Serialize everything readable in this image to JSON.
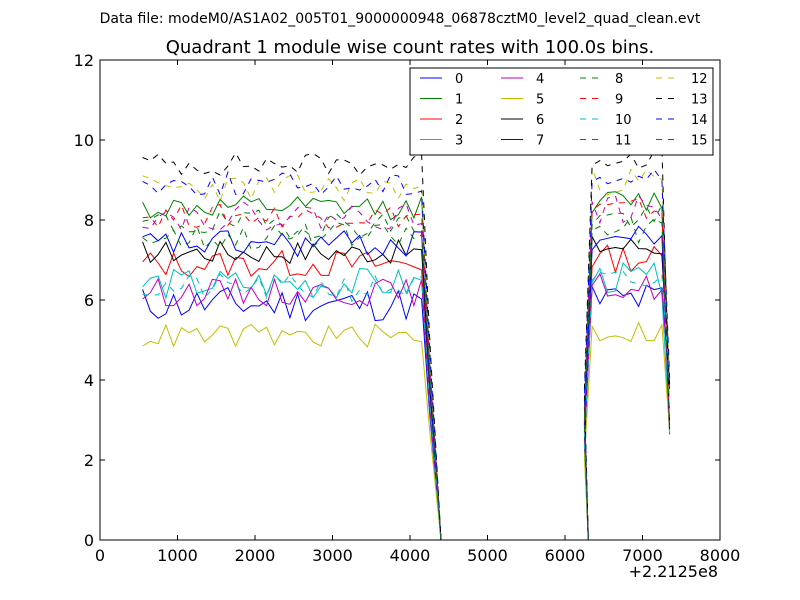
{
  "chart_data": {
    "type": "line",
    "suptitle": "Data file: modeM0/AS1A02_005T01_9000000948_06878cztM0_level2_quad_clean.evt",
    "title": "Quadrant 1 module wise count rates with 100.0s bins.",
    "xlabel": "",
    "ylabel": "",
    "x_offset_label": "+2.2125e8",
    "xlim": [
      0,
      8000
    ],
    "ylim": [
      0,
      12
    ],
    "xticks": [
      "0",
      "1000",
      "2000",
      "3000",
      "4000",
      "5000",
      "6000",
      "7000",
      "8000"
    ],
    "yticks": [
      "0",
      "2",
      "4",
      "6",
      "8",
      "10",
      "12"
    ],
    "legend_position": "top-right",
    "bin_width_s": 100,
    "segments": [
      {
        "x_start": 550,
        "x_end": 4150
      },
      {
        "x_start": 6350,
        "x_end": 7350
      }
    ],
    "zero_span": [
      4400,
      6300
    ],
    "series": [
      {
        "name": "0",
        "color": "#0000ff",
        "dash": "solid",
        "level": 5.9,
        "noise": 0.45,
        "seed": 11
      },
      {
        "name": "1",
        "color": "#008000",
        "dash": "solid",
        "level": 8.3,
        "noise": 0.3,
        "seed": 12
      },
      {
        "name": "2",
        "color": "#ff0000",
        "dash": "solid",
        "level": 6.9,
        "noise": 0.35,
        "seed": 13
      },
      {
        "name": "3",
        "color": "#00bfbf",
        "dash": "solid",
        "level": 6.4,
        "noise": 0.4,
        "seed": 14
      },
      {
        "name": "4",
        "color": "#bf00bf",
        "dash": "solid",
        "level": 6.2,
        "noise": 0.35,
        "seed": 15
      },
      {
        "name": "5",
        "color": "#bfbf00",
        "dash": "solid",
        "level": 5.1,
        "noise": 0.3,
        "seed": 16
      },
      {
        "name": "6",
        "color": "#000000",
        "dash": "solid",
        "level": 7.2,
        "noise": 0.3,
        "seed": 17
      },
      {
        "name": "7",
        "color": "#0000ff",
        "dash": "solid",
        "level": 7.4,
        "noise": 0.35,
        "seed": 18
      },
      {
        "name": "8",
        "color": "#008000",
        "dash": "dashed",
        "level": 7.9,
        "noise": 0.35,
        "seed": 19
      },
      {
        "name": "9",
        "color": "#ff0000",
        "dash": "dashed",
        "level": 8.1,
        "noise": 0.3,
        "seed": 20
      },
      {
        "name": "10",
        "color": "#00bfbf",
        "dash": "dashed",
        "level": 6.3,
        "noise": 0.35,
        "seed": 21
      },
      {
        "name": "11",
        "color": "#bf00bf",
        "dash": "dashed",
        "level": 8.1,
        "noise": 0.35,
        "seed": 22
      },
      {
        "name": "12",
        "color": "#bfbf00",
        "dash": "dashed",
        "level": 8.8,
        "noise": 0.35,
        "seed": 23
      },
      {
        "name": "13",
        "color": "#000000",
        "dash": "dashed",
        "level": 9.4,
        "noise": 0.3,
        "seed": 24
      },
      {
        "name": "14",
        "color": "#0000ff",
        "dash": "dashed",
        "level": 8.9,
        "noise": 0.3,
        "seed": 25
      },
      {
        "name": "15",
        "color": "#008000",
        "dash": "dashed",
        "level": 7.6,
        "noise": 0.35,
        "seed": 26
      }
    ]
  }
}
